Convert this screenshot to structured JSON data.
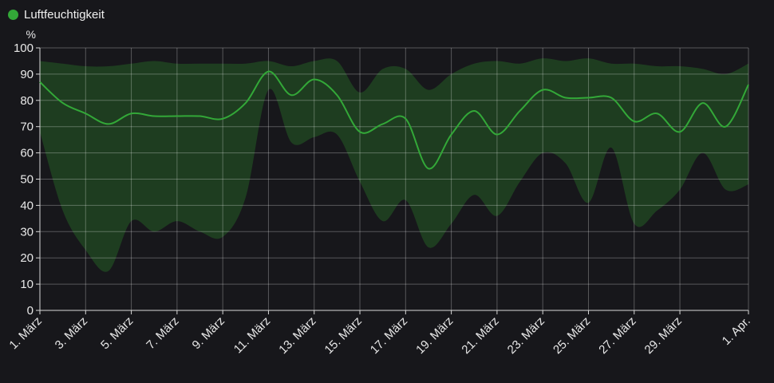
{
  "chart_data": {
    "type": "area",
    "unit": "%",
    "ylim": [
      0,
      100
    ],
    "yticks": [
      0,
      10,
      20,
      30,
      40,
      50,
      60,
      70,
      80,
      90,
      100
    ],
    "x_start": "2024-03-01",
    "x_end": "2024-04-01",
    "grid": true,
    "legend_position": "top-left",
    "xtick_labels": [
      "1. März",
      "3. März",
      "5. März",
      "7. März",
      "9. März",
      "11. März",
      "13. März",
      "15. März",
      "17. März",
      "19. März",
      "21. März",
      "23. März",
      "25. März",
      "27. März",
      "29. März",
      "1. Apr."
    ],
    "xtick_dates": [
      "2024-03-01",
      "2024-03-03",
      "2024-03-05",
      "2024-03-07",
      "2024-03-09",
      "2024-03-11",
      "2024-03-13",
      "2024-03-15",
      "2024-03-17",
      "2024-03-19",
      "2024-03-21",
      "2024-03-23",
      "2024-03-25",
      "2024-03-27",
      "2024-03-29",
      "2024-04-01"
    ],
    "series": [
      {
        "name": "Luftfeuchtigkeit",
        "color": "#33a838",
        "band_color": "#1e3d20",
        "points": [
          {
            "date": "2024-03-01",
            "mean": 87,
            "min": 68,
            "max": 95
          },
          {
            "date": "2024-03-02",
            "mean": 79,
            "min": 38,
            "max": 94
          },
          {
            "date": "2024-03-03",
            "mean": 75,
            "min": 23,
            "max": 93
          },
          {
            "date": "2024-03-04",
            "mean": 71,
            "min": 15,
            "max": 93
          },
          {
            "date": "2024-03-05",
            "mean": 75,
            "min": 34,
            "max": 94
          },
          {
            "date": "2024-03-06",
            "mean": 74,
            "min": 30,
            "max": 95
          },
          {
            "date": "2024-03-07",
            "mean": 74,
            "min": 34,
            "max": 94
          },
          {
            "date": "2024-03-08",
            "mean": 74,
            "min": 30,
            "max": 94
          },
          {
            "date": "2024-03-09",
            "mean": 73,
            "min": 28,
            "max": 94
          },
          {
            "date": "2024-03-10",
            "mean": 79,
            "min": 43,
            "max": 94
          },
          {
            "date": "2024-03-11",
            "mean": 91,
            "min": 84,
            "max": 95
          },
          {
            "date": "2024-03-12",
            "mean": 82,
            "min": 64,
            "max": 93
          },
          {
            "date": "2024-03-13",
            "mean": 88,
            "min": 66,
            "max": 95
          },
          {
            "date": "2024-03-14",
            "mean": 82,
            "min": 67,
            "max": 95
          },
          {
            "date": "2024-03-15",
            "mean": 68,
            "min": 49,
            "max": 83
          },
          {
            "date": "2024-03-16",
            "mean": 71,
            "min": 34,
            "max": 92
          },
          {
            "date": "2024-03-17",
            "mean": 73,
            "min": 42,
            "max": 92
          },
          {
            "date": "2024-03-18",
            "mean": 54,
            "min": 24,
            "max": 84
          },
          {
            "date": "2024-03-19",
            "mean": 67,
            "min": 33,
            "max": 90
          },
          {
            "date": "2024-03-20",
            "mean": 76,
            "min": 44,
            "max": 94
          },
          {
            "date": "2024-03-21",
            "mean": 67,
            "min": 36,
            "max": 95
          },
          {
            "date": "2024-03-22",
            "mean": 76,
            "min": 49,
            "max": 94
          },
          {
            "date": "2024-03-23",
            "mean": 84,
            "min": 60,
            "max": 96
          },
          {
            "date": "2024-03-24",
            "mean": 81,
            "min": 56,
            "max": 95
          },
          {
            "date": "2024-03-25",
            "mean": 81,
            "min": 41,
            "max": 96
          },
          {
            "date": "2024-03-26",
            "mean": 81,
            "min": 62,
            "max": 94
          },
          {
            "date": "2024-03-27",
            "mean": 72,
            "min": 33,
            "max": 94
          },
          {
            "date": "2024-03-28",
            "mean": 75,
            "min": 38,
            "max": 93
          },
          {
            "date": "2024-03-29",
            "mean": 68,
            "min": 46,
            "max": 93
          },
          {
            "date": "2024-03-30",
            "mean": 79,
            "min": 60,
            "max": 92
          },
          {
            "date": "2024-03-31",
            "mean": 70,
            "min": 46,
            "max": 90
          },
          {
            "date": "2024-04-01",
            "mean": 86,
            "min": 48,
            "max": 94
          }
        ]
      }
    ]
  }
}
